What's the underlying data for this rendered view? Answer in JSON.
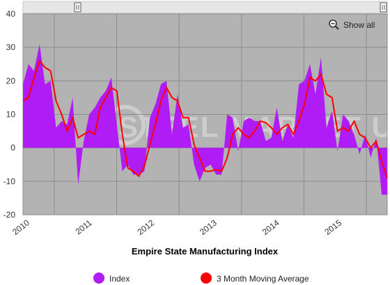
{
  "chart_data": {
    "type": "area",
    "title": "Empire State Manufacturing Index",
    "xlabel": "Empire State Manufacturing Index",
    "ylabel": "",
    "ylim": [
      -20,
      40
    ],
    "yticks": [
      "40",
      "30",
      "20",
      "10",
      "0",
      "-10",
      "-20"
    ],
    "xticks": [
      "2010",
      "2011",
      "2012",
      "2013",
      "2014",
      "2015"
    ],
    "grid": true,
    "legend_position": "bottom",
    "x_start": "2009-07",
    "x_end": "2015-05",
    "series": [
      {
        "name": "Index",
        "color": "#b01cf6",
        "values": [
          19.0,
          25.0,
          23.0,
          31.0,
          19.0,
          20.0,
          6.0,
          8.0,
          7.0,
          15.0,
          -11.0,
          2.0,
          10.0,
          12.0,
          15.0,
          17.0,
          21.0,
          7.0,
          -7.0,
          -5.0,
          -8.0,
          -8.0,
          -7.0,
          9.0,
          13.0,
          19.0,
          20.0,
          4.0,
          16.0,
          6.0,
          7.0,
          -5.0,
          -10.0,
          -6.0,
          -5.0,
          -8.0,
          -8.0,
          10.0,
          9.0,
          -1.0,
          8.0,
          9.0,
          8.0,
          8.0,
          2.0,
          3.0,
          12.0,
          2.0,
          7.0,
          3.0,
          19.0,
          20.0,
          25.0,
          16.0,
          27.0,
          6.0,
          11.0,
          -1.0,
          10.0,
          8.0,
          4.0,
          -2.0,
          4.0,
          -3.0,
          3.0,
          -14.0,
          -14.0
        ]
      },
      {
        "name": "3 Month Moving Average",
        "color": "#ff0000",
        "values": [
          14.0,
          15.0,
          21.0,
          26.0,
          24.0,
          23.0,
          14.0,
          10.0,
          5.0,
          9.0,
          3.0,
          4.0,
          5.0,
          4.0,
          12.0,
          15.0,
          18.0,
          17.0,
          4.0,
          -6.0,
          -7.0,
          -8.5,
          -5.5,
          1.0,
          7.0,
          14.0,
          18.0,
          15.0,
          14.0,
          9.0,
          9.0,
          1.0,
          -3.0,
          -7.0,
          -7.0,
          -6.5,
          -7.0,
          -3.0,
          4.0,
          6.0,
          4.0,
          3.0,
          5.0,
          8.0,
          7.5,
          6.0,
          4.0,
          6.0,
          7.0,
          4.0,
          8.0,
          13.0,
          21.0,
          20.0,
          22.0,
          16.0,
          15.0,
          5.0,
          6.0,
          5.0,
          8.0,
          4.0,
          3.0,
          0.0,
          2.0,
          -4.0,
          -9.0
        ]
      }
    ]
  },
  "toolbar": {
    "show_all_label": "Show all",
    "zoom_icon": "zoom-out-icon",
    "handle_icon": "scroll-handle-icon"
  },
  "watermark": "STEEL MARKET UPDATE",
  "legend": {
    "items": [
      {
        "label": "Index",
        "color": "#b01cf6"
      },
      {
        "label": "3 Month Moving Average",
        "color": "#ff0000"
      }
    ]
  }
}
